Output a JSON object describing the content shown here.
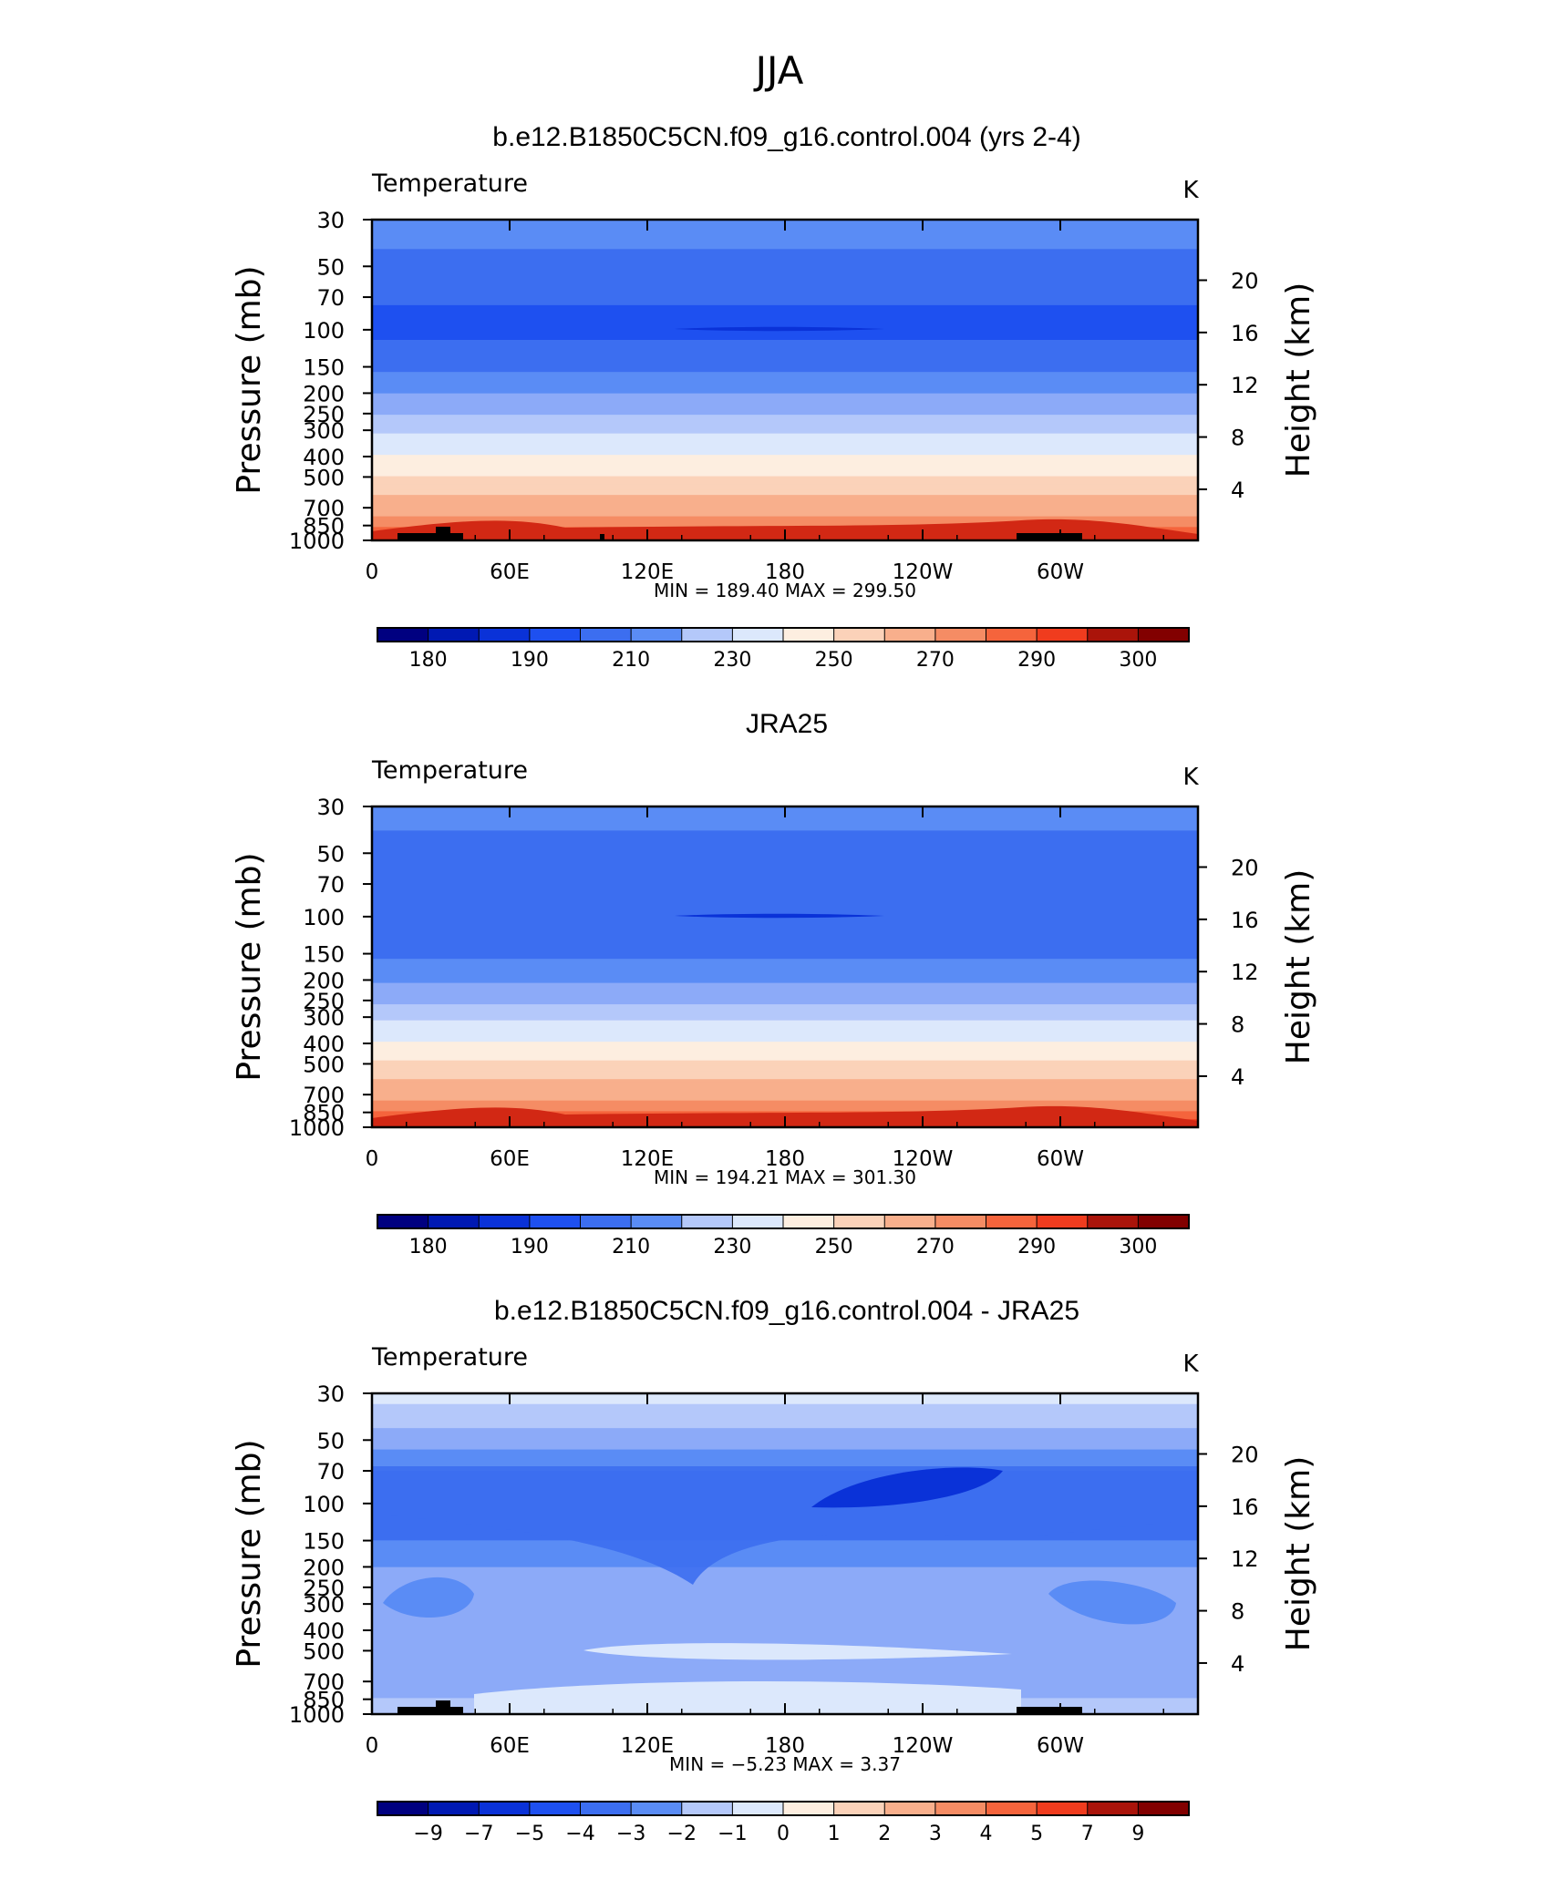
{
  "page": {
    "title": "JJA"
  },
  "chart_data": [
    {
      "type": "heatmap",
      "title": "b.e12.B1850C5CN.f09_g16.control.004 (yrs 2-4)",
      "subtitle": "Temperature",
      "units": "K",
      "ylabel": "Pressure (mb)",
      "ylabel_right": "Height (km)",
      "x_ticks": [
        "0",
        "60E",
        "120E",
        "180",
        "120W",
        "60W"
      ],
      "y_ticks": [
        "30",
        "50",
        "70",
        "100",
        "150",
        "200",
        "250",
        "300",
        "400",
        "500",
        "700",
        "850",
        "1000"
      ],
      "y_ticks_right": [
        "20",
        "16",
        "12",
        "8",
        "4"
      ],
      "stats": "MIN = 189.40 MAX = 299.50",
      "colorbar_labels": [
        "180",
        "190",
        "210",
        "230",
        "250",
        "270",
        "290",
        "300"
      ],
      "profile_levels_mb": [
        30,
        50,
        70,
        100,
        150,
        200,
        250,
        300,
        400,
        500,
        700,
        850,
        1000
      ],
      "profile_values_K": [
        215,
        207,
        201,
        197,
        208,
        220,
        229,
        238,
        251,
        261,
        276,
        284,
        293
      ],
      "grid": false,
      "legend": "bottom"
    },
    {
      "type": "heatmap",
      "title": "JRA25",
      "subtitle": "Temperature",
      "units": "K",
      "ylabel": "Pressure (mb)",
      "ylabel_right": "Height (km)",
      "x_ticks": [
        "0",
        "60E",
        "120E",
        "180",
        "120W",
        "60W"
      ],
      "y_ticks": [
        "30",
        "50",
        "70",
        "100",
        "150",
        "200",
        "250",
        "300",
        "400",
        "500",
        "700",
        "850",
        "1000"
      ],
      "y_ticks_right": [
        "20",
        "16",
        "12",
        "8",
        "4"
      ],
      "stats": "MIN = 194.21 MAX = 301.30",
      "colorbar_labels": [
        "180",
        "190",
        "210",
        "230",
        "250",
        "270",
        "290",
        "300"
      ],
      "profile_levels_mb": [
        30,
        50,
        70,
        100,
        150,
        200,
        250,
        300,
        400,
        500,
        700,
        850,
        1000
      ],
      "profile_values_K": [
        212,
        208,
        205,
        201,
        208,
        219,
        228,
        238,
        251,
        262,
        277,
        286,
        294
      ],
      "grid": false,
      "legend": "bottom"
    },
    {
      "type": "heatmap",
      "title": "b.e12.B1850C5CN.f09_g16.control.004 - JRA25",
      "subtitle": "Temperature",
      "units": "K",
      "ylabel": "Pressure (mb)",
      "ylabel_right": "Height (km)",
      "x_ticks": [
        "0",
        "60E",
        "120E",
        "180",
        "120W",
        "60W"
      ],
      "y_ticks": [
        "30",
        "50",
        "70",
        "100",
        "150",
        "200",
        "250",
        "300",
        "400",
        "500",
        "700",
        "850",
        "1000"
      ],
      "y_ticks_right": [
        "20",
        "16",
        "12",
        "8",
        "4"
      ],
      "stats": "MIN = −5.23 MAX = 3.37",
      "colorbar_labels": [
        "−9",
        "−7",
        "−5",
        "−4",
        "−3",
        "−2",
        "−1",
        "0",
        "1",
        "2",
        "3",
        "4",
        "5",
        "7",
        "9"
      ],
      "profile_levels_mb": [
        30,
        50,
        70,
        100,
        150,
        200,
        300,
        500,
        700,
        850,
        1000
      ],
      "profile_values_K": [
        0.5,
        -1.5,
        -3,
        -4,
        -3,
        -2,
        -2,
        -1.5,
        -2,
        -1,
        -0.5
      ],
      "grid": false,
      "legend": "bottom"
    }
  ],
  "colors": {
    "palette": [
      "#000080",
      "#0019b3",
      "#0a32d8",
      "#1e50f0",
      "#3c6ef0",
      "#5a8cf5",
      "#8caaf8",
      "#b4c8fa",
      "#dce8fc",
      "#fdeee0",
      "#fbd2b9",
      "#f8af8c",
      "#f58c64",
      "#f5643c",
      "#f03c1e",
      "#d22814",
      "#aa140a",
      "#820000"
    ],
    "land": "#000000"
  }
}
